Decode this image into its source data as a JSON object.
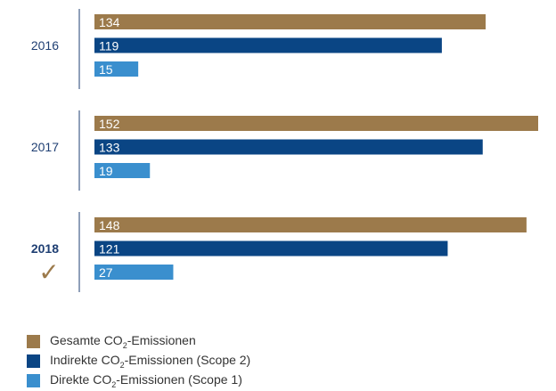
{
  "chart_data": {
    "type": "bar",
    "orientation": "horizontal",
    "categories": [
      "2016",
      "2017",
      "2018"
    ],
    "highlight_category": "2018",
    "highlight_mark": "✓",
    "series": [
      {
        "name_prefix": "Gesamte CO",
        "name_sub": "2",
        "name_suffix": "-Emissionen",
        "color": "#9c7a4b",
        "values": [
          134,
          152,
          148
        ]
      },
      {
        "name_prefix": "Indirekte CO",
        "name_sub": "2",
        "name_suffix": "-Emissionen (Scope 2)",
        "color": "#0a4584",
        "values": [
          119,
          133,
          121
        ]
      },
      {
        "name_prefix": "Direkte CO",
        "name_sub": "2",
        "name_suffix": "-Emissionen (Scope 1)",
        "color": "#3a8fce",
        "values": [
          15,
          19,
          27
        ]
      }
    ],
    "title": "",
    "xlabel": "",
    "ylabel": "",
    "xlim": [
      0,
      152
    ],
    "grid": false,
    "legend": "bottom-left"
  }
}
